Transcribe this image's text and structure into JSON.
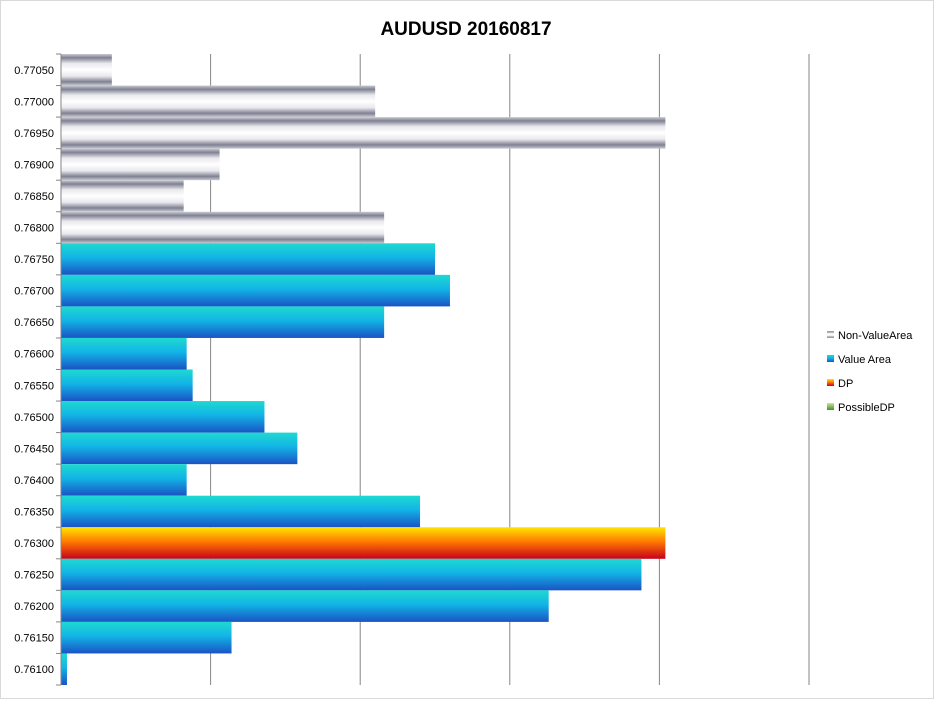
{
  "chart_data": {
    "type": "bar",
    "orientation": "horizontal",
    "title": "AUDUSD 20160817",
    "xlabel": "",
    "ylabel": "",
    "grid": true,
    "legend_position": "right",
    "xlim": [
      0,
      250
    ],
    "categories": [
      "0.77050",
      "0.77000",
      "0.76950",
      "0.76900",
      "0.76850",
      "0.76800",
      "0.76750",
      "0.76700",
      "0.76650",
      "0.76600",
      "0.76550",
      "0.76500",
      "0.76450",
      "0.76400",
      "0.76350",
      "0.76300",
      "0.76250",
      "0.76200",
      "0.76150",
      "0.76100"
    ],
    "series": [
      {
        "name": "Non-ValueArea",
        "color": "#9a9cac",
        "values": [
          17,
          105,
          202,
          53,
          41,
          108,
          null,
          null,
          null,
          null,
          null,
          null,
          null,
          null,
          null,
          null,
          null,
          null,
          null,
          null
        ]
      },
      {
        "name": "Value Area",
        "color": "#1f8fd6",
        "values": [
          null,
          null,
          null,
          null,
          null,
          null,
          125,
          130,
          108,
          42,
          44,
          68,
          79,
          42,
          120,
          null,
          194,
          163,
          57,
          2
        ]
      },
      {
        "name": "DP",
        "color": "#e8201a",
        "values": [
          null,
          null,
          null,
          null,
          null,
          null,
          null,
          null,
          null,
          null,
          null,
          null,
          null,
          null,
          null,
          202,
          null,
          null,
          null,
          null
        ]
      },
      {
        "name": "PossibleDP",
        "color": "#6aa84f",
        "values": [
          null,
          null,
          null,
          null,
          null,
          null,
          null,
          null,
          null,
          null,
          null,
          null,
          null,
          null,
          null,
          null,
          null,
          null,
          null,
          null
        ]
      }
    ]
  }
}
